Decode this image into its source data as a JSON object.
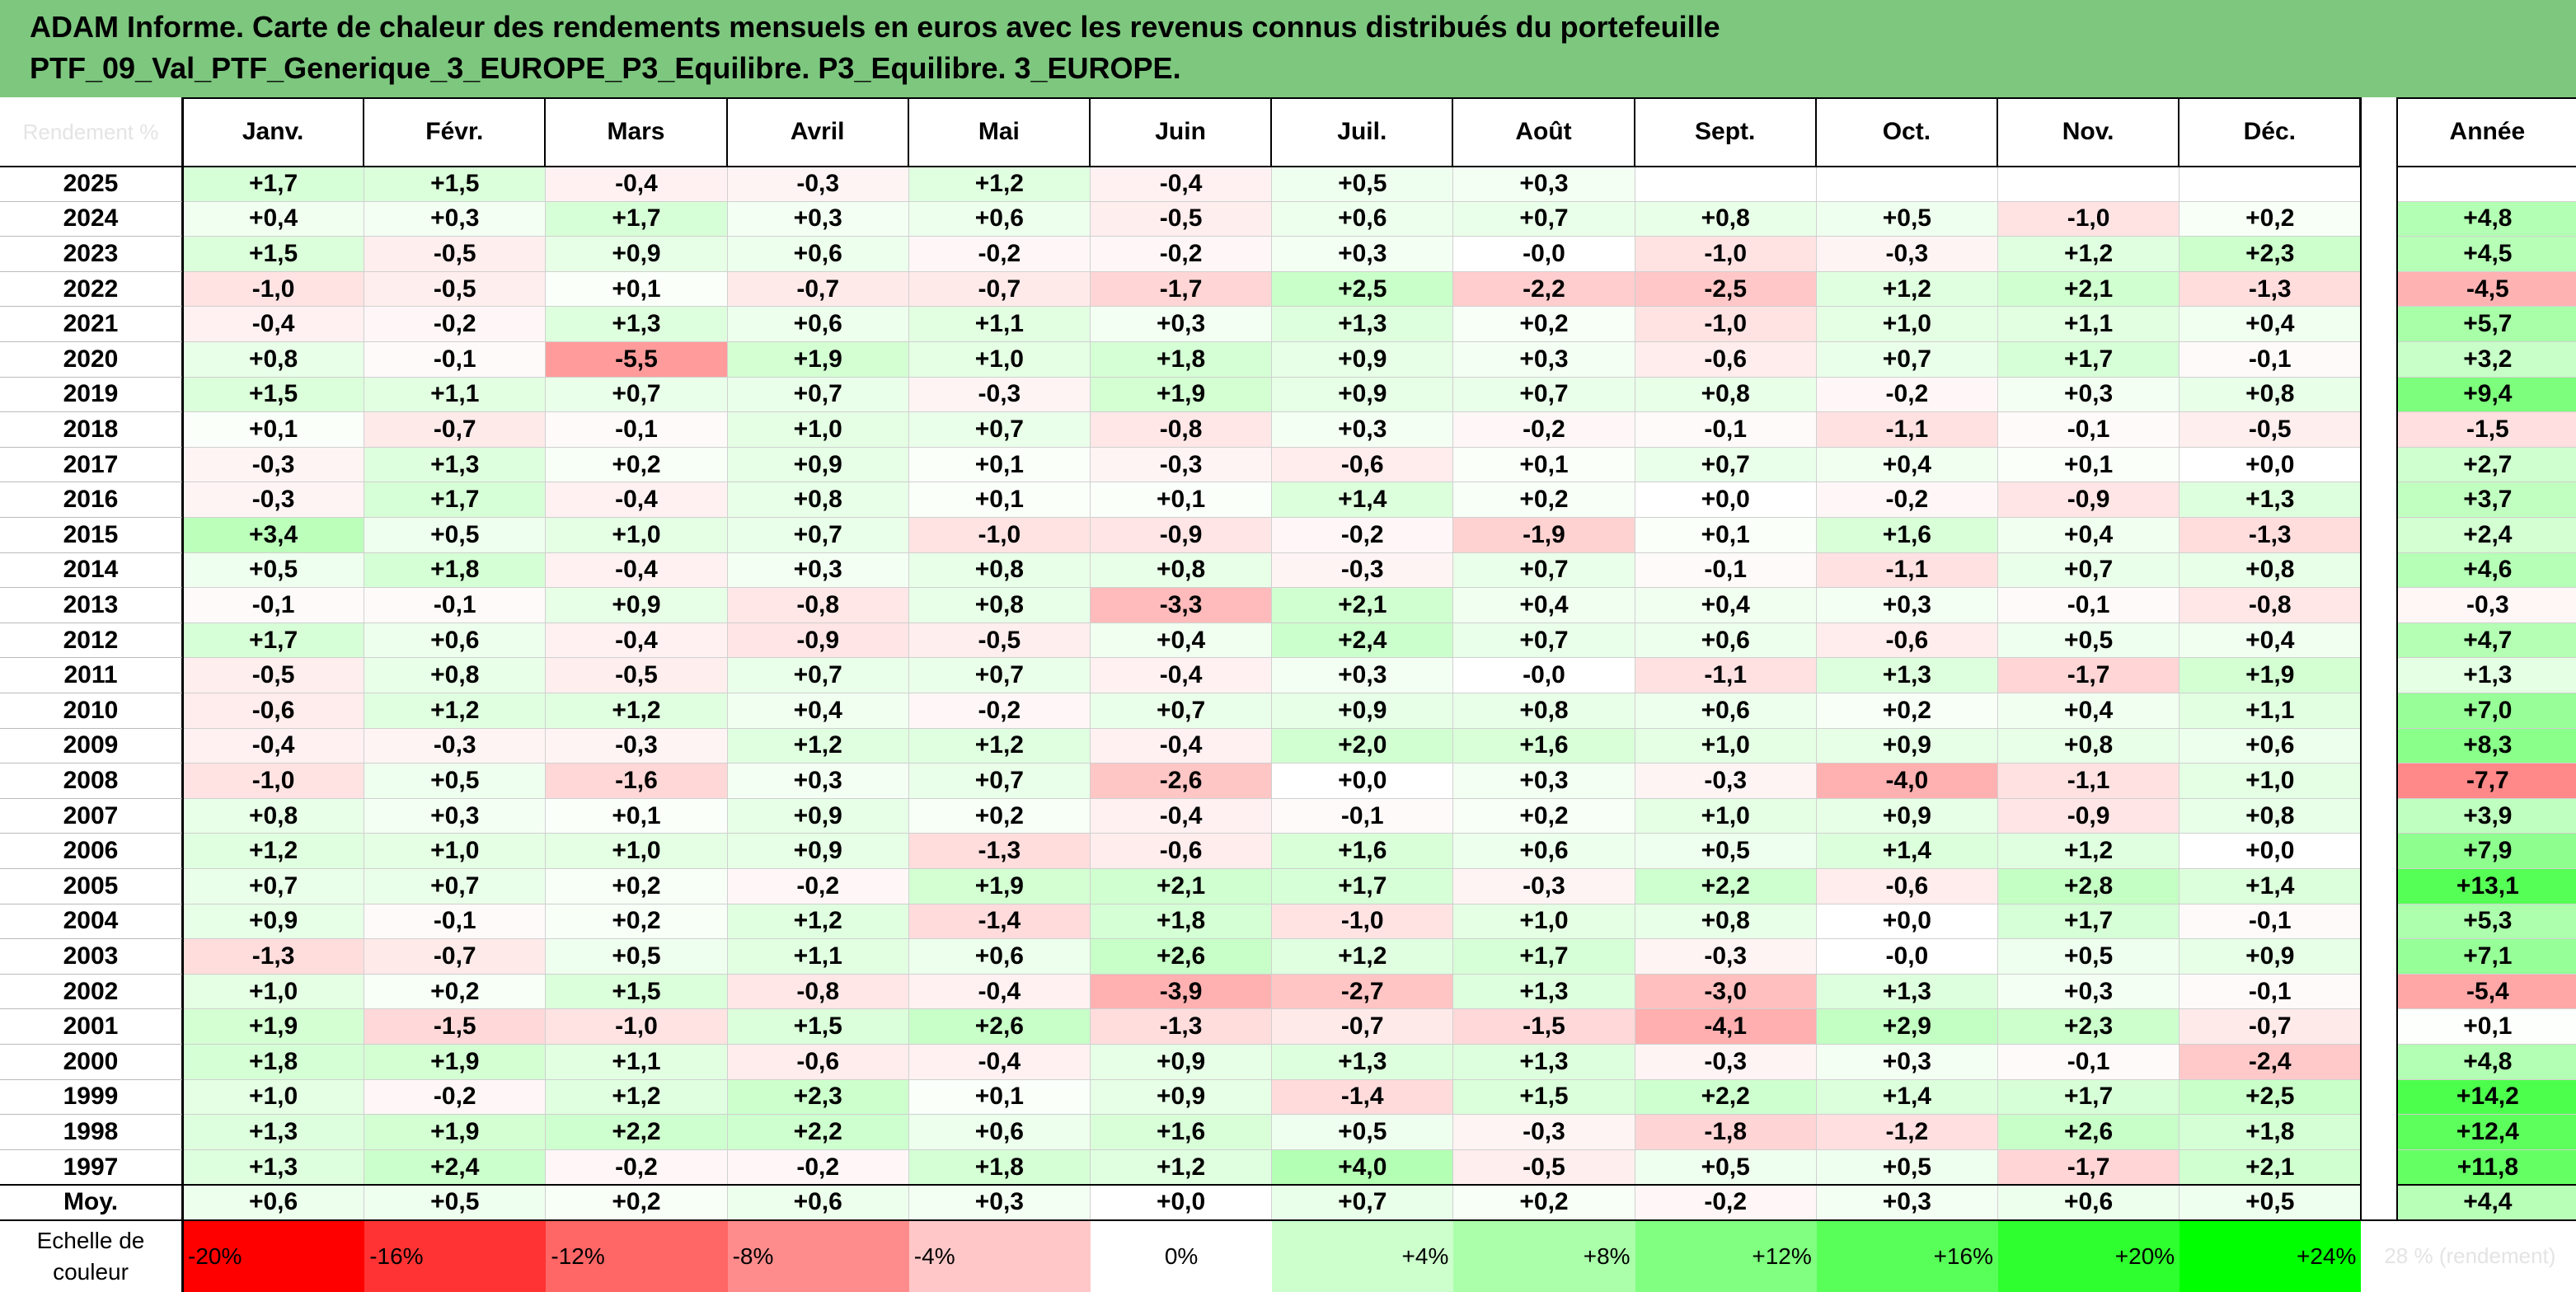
{
  "title": {
    "line1": "ADAM Informe. Carte de chaleur des rendements mensuels en euros avec les revenus connus distribués du portefeuille",
    "line2": "PTF_09_Val_PTF_Generique_3_EUROPE_P3_Equilibre. P3_Equilibre. 3_EUROPE."
  },
  "chart_data": {
    "type": "heatmap",
    "corner_label": "Rendement %",
    "columns": [
      "Janv.",
      "Févr.",
      "Mars",
      "Avril",
      "Mai",
      "Juin",
      "Juil.",
      "Août",
      "Sept.",
      "Oct.",
      "Nov.",
      "Déc."
    ],
    "year_column": "Année",
    "rows": [
      {
        "year": "2025",
        "months": [
          1.7,
          1.5,
          -0.4,
          -0.3,
          1.2,
          -0.4,
          0.5,
          0.3,
          null,
          null,
          null,
          null
        ],
        "annual": null
      },
      {
        "year": "2024",
        "months": [
          0.4,
          0.3,
          1.7,
          0.3,
          0.6,
          -0.5,
          0.6,
          0.7,
          0.8,
          0.5,
          -1.0,
          0.2
        ],
        "annual": 4.8
      },
      {
        "year": "2023",
        "months": [
          1.5,
          -0.5,
          0.9,
          0.6,
          -0.2,
          -0.2,
          0.3,
          -0.0,
          -1.0,
          -0.3,
          1.2,
          2.3
        ],
        "annual": 4.5
      },
      {
        "year": "2022",
        "months": [
          -1.0,
          -0.5,
          0.1,
          -0.7,
          -0.7,
          -1.7,
          2.5,
          -2.2,
          -2.5,
          1.2,
          2.1,
          -1.3
        ],
        "annual": -4.5
      },
      {
        "year": "2021",
        "months": [
          -0.4,
          -0.2,
          1.3,
          0.6,
          1.1,
          0.3,
          1.3,
          0.2,
          -1.0,
          1.0,
          1.1,
          0.4
        ],
        "annual": 5.7
      },
      {
        "year": "2020",
        "months": [
          0.8,
          -0.1,
          -5.5,
          1.9,
          1.0,
          1.8,
          0.9,
          0.3,
          -0.6,
          0.7,
          1.7,
          -0.1
        ],
        "annual": 3.2
      },
      {
        "year": "2019",
        "months": [
          1.5,
          1.1,
          0.7,
          0.7,
          -0.3,
          1.9,
          0.9,
          0.7,
          0.8,
          -0.2,
          0.3,
          0.8
        ],
        "annual": 9.4
      },
      {
        "year": "2018",
        "months": [
          0.1,
          -0.7,
          -0.1,
          1.0,
          0.7,
          -0.8,
          0.3,
          -0.2,
          -0.1,
          -1.1,
          -0.1,
          -0.5
        ],
        "annual": -1.5
      },
      {
        "year": "2017",
        "months": [
          -0.3,
          1.3,
          0.2,
          0.9,
          0.1,
          -0.3,
          -0.6,
          0.1,
          0.7,
          0.4,
          0.1,
          0.0
        ],
        "annual": 2.7
      },
      {
        "year": "2016",
        "months": [
          -0.3,
          1.7,
          -0.4,
          0.8,
          0.1,
          0.1,
          1.4,
          0.2,
          0.0,
          -0.2,
          -0.9,
          1.3
        ],
        "annual": 3.7
      },
      {
        "year": "2015",
        "months": [
          3.4,
          0.5,
          1.0,
          0.7,
          -1.0,
          -0.9,
          -0.2,
          -1.9,
          0.1,
          1.6,
          0.4,
          -1.3
        ],
        "annual": 2.4
      },
      {
        "year": "2014",
        "months": [
          0.5,
          1.8,
          -0.4,
          0.3,
          0.8,
          0.8,
          -0.3,
          0.7,
          -0.1,
          -1.1,
          0.7,
          0.8
        ],
        "annual": 4.6
      },
      {
        "year": "2013",
        "months": [
          -0.1,
          -0.1,
          0.9,
          -0.8,
          0.8,
          -3.3,
          2.1,
          0.4,
          0.4,
          0.3,
          -0.1,
          -0.8
        ],
        "annual": -0.3
      },
      {
        "year": "2012",
        "months": [
          1.7,
          0.6,
          -0.4,
          -0.9,
          -0.5,
          0.4,
          2.4,
          0.7,
          0.6,
          -0.6,
          0.5,
          0.4
        ],
        "annual": 4.7
      },
      {
        "year": "2011",
        "months": [
          -0.5,
          0.8,
          -0.5,
          0.7,
          0.7,
          -0.4,
          0.3,
          -0.0,
          -1.1,
          1.3,
          -1.7,
          1.9
        ],
        "annual": 1.3
      },
      {
        "year": "2010",
        "months": [
          -0.6,
          1.2,
          1.2,
          0.4,
          -0.2,
          0.7,
          0.9,
          0.8,
          0.6,
          0.2,
          0.4,
          1.1
        ],
        "annual": 7.0
      },
      {
        "year": "2009",
        "months": [
          -0.4,
          -0.3,
          -0.3,
          1.2,
          1.2,
          -0.4,
          2.0,
          1.6,
          1.0,
          0.9,
          0.8,
          0.6
        ],
        "annual": 8.3
      },
      {
        "year": "2008",
        "months": [
          -1.0,
          0.5,
          -1.6,
          0.3,
          0.7,
          -2.6,
          0.0,
          0.3,
          -0.3,
          -4.0,
          -1.1,
          1.0
        ],
        "annual": -7.7
      },
      {
        "year": "2007",
        "months": [
          0.8,
          0.3,
          0.1,
          0.9,
          0.2,
          -0.4,
          -0.1,
          0.2,
          1.0,
          0.9,
          -0.9,
          0.8
        ],
        "annual": 3.9
      },
      {
        "year": "2006",
        "months": [
          1.2,
          1.0,
          1.0,
          0.9,
          -1.3,
          -0.6,
          1.6,
          0.6,
          0.5,
          1.4,
          1.2,
          0.0
        ],
        "annual": 7.9
      },
      {
        "year": "2005",
        "months": [
          0.7,
          0.7,
          0.2,
          -0.2,
          1.9,
          2.1,
          1.7,
          -0.3,
          2.2,
          -0.6,
          2.8,
          1.4
        ],
        "annual": 13.1
      },
      {
        "year": "2004",
        "months": [
          0.9,
          -0.1,
          0.2,
          1.2,
          -1.4,
          1.8,
          -1.0,
          1.0,
          0.8,
          0.0,
          1.7,
          -0.1
        ],
        "annual": 5.3
      },
      {
        "year": "2003",
        "months": [
          -1.3,
          -0.7,
          0.5,
          1.1,
          0.6,
          2.6,
          1.2,
          1.7,
          -0.3,
          -0.0,
          0.5,
          0.9
        ],
        "annual": 7.1
      },
      {
        "year": "2002",
        "months": [
          1.0,
          0.2,
          1.5,
          -0.8,
          -0.4,
          -3.9,
          -2.7,
          1.3,
          -3.0,
          1.3,
          0.3,
          -0.1
        ],
        "annual": -5.4
      },
      {
        "year": "2001",
        "months": [
          1.9,
          -1.5,
          -1.0,
          1.5,
          2.6,
          -1.3,
          -0.7,
          -1.5,
          -4.1,
          2.9,
          2.3,
          -0.7
        ],
        "annual": 0.1
      },
      {
        "year": "2000",
        "months": [
          1.8,
          1.9,
          1.1,
          -0.6,
          -0.4,
          0.9,
          1.3,
          1.3,
          -0.3,
          0.3,
          -0.1,
          -2.4
        ],
        "annual": 4.8
      },
      {
        "year": "1999",
        "months": [
          1.0,
          -0.2,
          1.2,
          2.3,
          0.1,
          0.9,
          -1.4,
          1.5,
          2.2,
          1.4,
          1.7,
          2.5
        ],
        "annual": 14.2
      },
      {
        "year": "1998",
        "months": [
          1.3,
          1.9,
          2.2,
          2.2,
          0.6,
          1.6,
          0.5,
          -0.3,
          -1.8,
          -1.2,
          2.6,
          1.8
        ],
        "annual": 12.4
      },
      {
        "year": "1997",
        "months": [
          1.3,
          2.4,
          -0.2,
          -0.2,
          1.8,
          1.2,
          4.0,
          -0.5,
          0.5,
          0.5,
          -1.7,
          2.1
        ],
        "annual": 11.8
      }
    ],
    "average": {
      "label": "Moy.",
      "months": [
        0.6,
        0.5,
        0.2,
        0.6,
        0.3,
        0.0,
        0.7,
        0.2,
        -0.2,
        0.3,
        0.6,
        0.5
      ],
      "annual": 4.4
    },
    "color_scale": {
      "label": "Echelle de couleur",
      "stops": [
        "-20%",
        "-16%",
        "-12%",
        "-8%",
        "-4%",
        "0%",
        "+4%",
        "+8%",
        "+12%",
        "+16%",
        "+20%",
        "+24%"
      ],
      "stop_values": [
        -20,
        -16,
        -12,
        -8,
        -4,
        0,
        4,
        8,
        12,
        16,
        20,
        24
      ],
      "extra_label": "28 %\n(rendement)",
      "negative_color": "#ff0000",
      "zero_color": "#ffffff",
      "positive_color": "#00ff00"
    }
  }
}
